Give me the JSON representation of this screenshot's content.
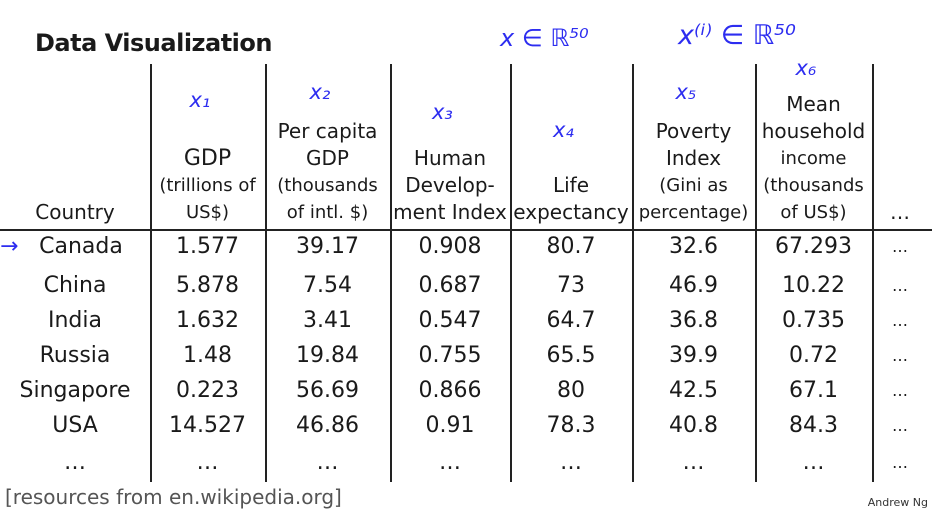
{
  "title": "Data Visualization",
  "annotations": {
    "x_in_r50": "x ∈ ℝ⁵⁰",
    "xi_in_r50": "x⁽ⁱ⁾ ∈ ℝ⁵⁰"
  },
  "columns": [
    {
      "var": "",
      "lines": [
        "Country"
      ]
    },
    {
      "var": "x₁",
      "lines": [
        "GDP",
        "(trillions of",
        "US$)"
      ]
    },
    {
      "var": "x₂",
      "lines": [
        "Per capita",
        "GDP",
        "(thousands",
        "of intl. $)"
      ]
    },
    {
      "var": "x₃",
      "lines": [
        "Human",
        "Develop-",
        "ment Index"
      ]
    },
    {
      "var": "x₄",
      "lines": [
        "Life",
        "expectancy"
      ]
    },
    {
      "var": "x₅",
      "lines": [
        "Poverty",
        "Index",
        "(Gini as",
        "percentage)"
      ]
    },
    {
      "var": "x₆",
      "lines": [
        "Mean",
        "household",
        "income",
        "(thousands",
        "of US$)"
      ]
    },
    {
      "var": "",
      "lines": [
        "…"
      ]
    }
  ],
  "rows": [
    [
      "Canada",
      "1.577",
      "39.17",
      "0.908",
      "80.7",
      "32.6",
      "67.293",
      "…"
    ],
    [
      "China",
      "5.878",
      "7.54",
      "0.687",
      "73",
      "46.9",
      "10.22",
      "…"
    ],
    [
      "India",
      "1.632",
      "3.41",
      "0.547",
      "64.7",
      "36.8",
      "0.735",
      "…"
    ],
    [
      "Russia",
      "1.48",
      "19.84",
      "0.755",
      "65.5",
      "39.9",
      "0.72",
      "…"
    ],
    [
      "Singapore",
      "0.223",
      "56.69",
      "0.866",
      "80",
      "42.5",
      "67.1",
      "…"
    ],
    [
      "USA",
      "14.527",
      "46.86",
      "0.91",
      "78.3",
      "40.8",
      "84.3",
      "…"
    ],
    [
      "…",
      "…",
      "…",
      "…",
      "…",
      "…",
      "…",
      "…"
    ]
  ],
  "arrow_glyph": "→",
  "footer": "[resources from en.wikipedia.org]",
  "credit": "Andrew Ng"
}
